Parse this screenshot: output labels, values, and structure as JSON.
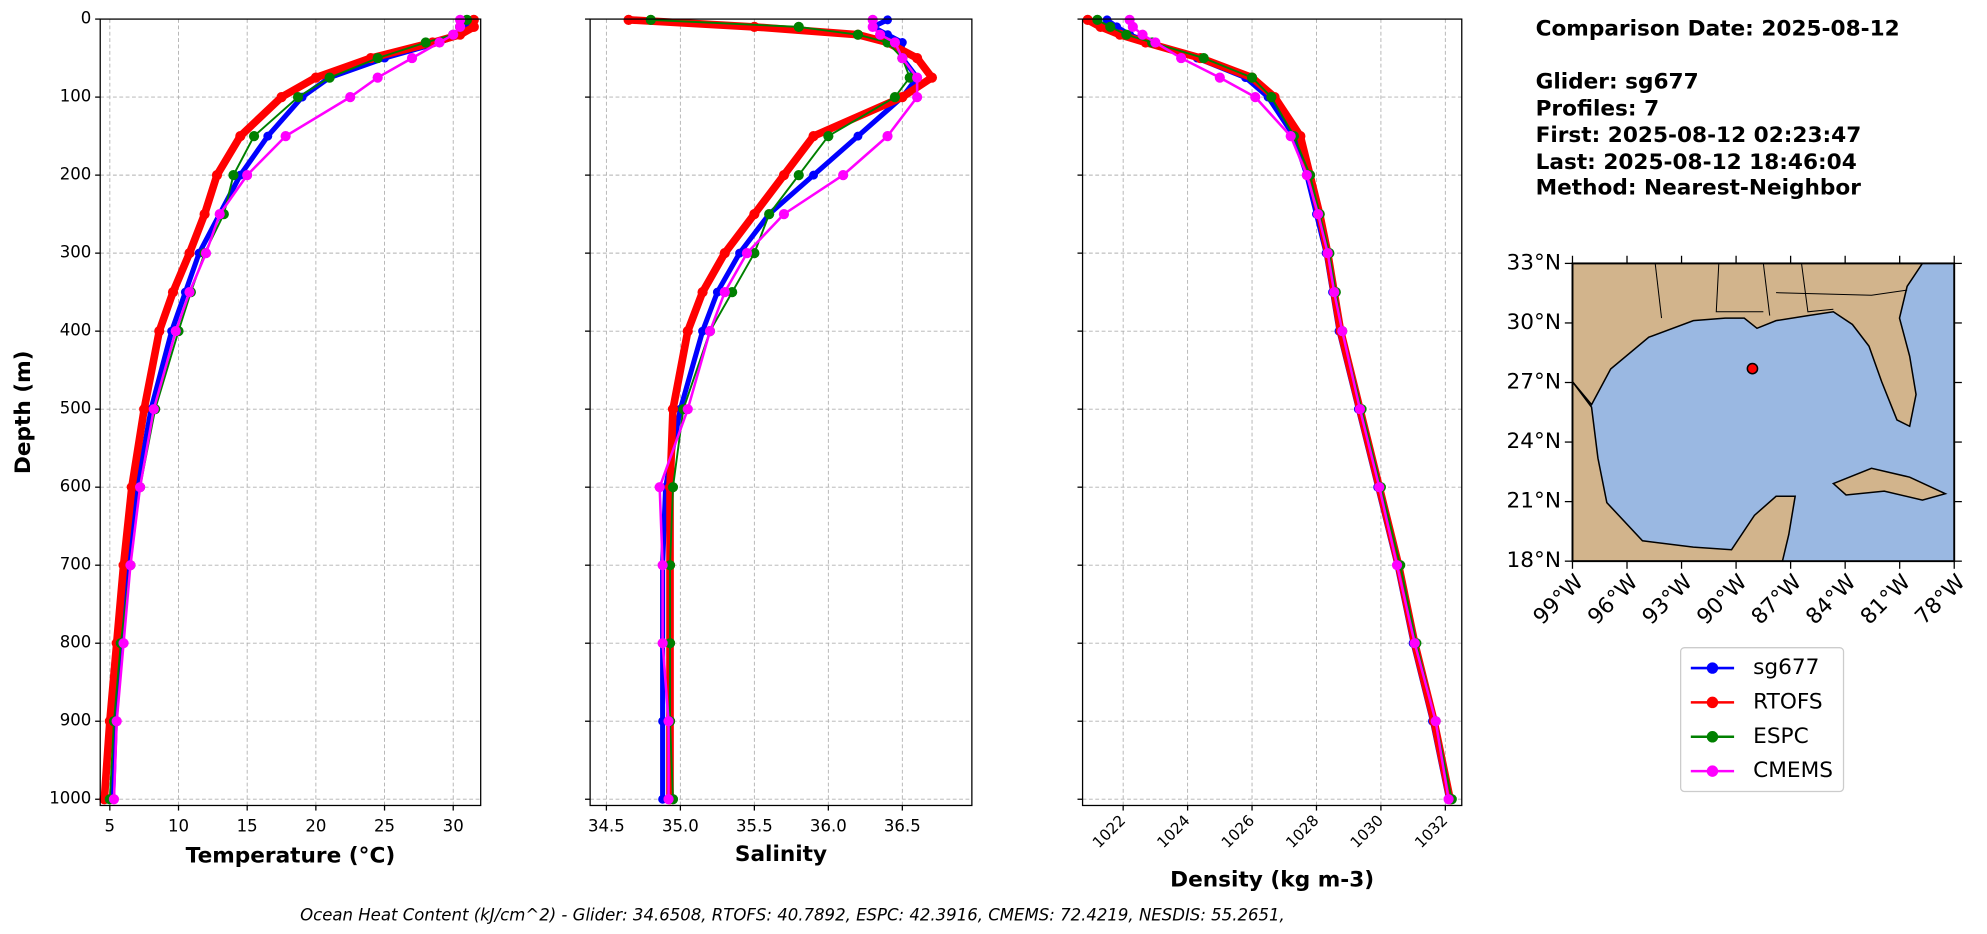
{
  "chart_data": [
    {
      "type": "line",
      "xlabel": "Temperature (°C)",
      "ylabel": "Depth (m)",
      "xlim": [
        4.3,
        32.0
      ],
      "xticks": [
        5,
        10,
        15,
        20,
        25,
        30
      ],
      "ylim": [
        1008,
        0
      ],
      "yticks": [
        0,
        100,
        200,
        300,
        400,
        500,
        600,
        700,
        800,
        900,
        1000
      ],
      "ytick_labels": true,
      "grid": true,
      "y": [
        1,
        10,
        20,
        30,
        50,
        75,
        100,
        150,
        200,
        250,
        300,
        350,
        400,
        500,
        600,
        700,
        800,
        900,
        1000
      ],
      "series": [
        {
          "name": "sg677",
          "color": "#0000ff",
          "values": [
            31,
            31,
            30.5,
            29,
            25,
            21,
            19,
            16.5,
            14.5,
            13,
            11.5,
            10.5,
            9.5,
            8,
            7,
            6.3,
            5.8,
            5.4,
            5.2
          ]
        },
        {
          "name": "RTOFS",
          "color": "#ff0000",
          "values": [
            31.5,
            31.5,
            30.5,
            28.5,
            24,
            20,
            17.5,
            14.5,
            12.8,
            11.9,
            10.8,
            9.6,
            8.6,
            7.5,
            6.6,
            6,
            5.5,
            5,
            4.6
          ]
        },
        {
          "name": "ESPC",
          "color": "#008000",
          "values": [
            31,
            30.5,
            30,
            28,
            24.5,
            21,
            18.7,
            15.5,
            14,
            13.3,
            11.9,
            10.9,
            10,
            8.3,
            7.2,
            6.5,
            5.8,
            5.3,
            5
          ]
        },
        {
          "name": "CMEMS",
          "color": "#ff00ff",
          "values": [
            30.5,
            30.5,
            30,
            29,
            27,
            24.5,
            22.5,
            17.8,
            15,
            13,
            12,
            10.8,
            9.8,
            8.2,
            7.2,
            6.5,
            6,
            5.5,
            5.3
          ]
        }
      ]
    },
    {
      "type": "line",
      "xlabel": "Salinity",
      "xlim": [
        34.39,
        36.97
      ],
      "xticks": [
        34.5,
        {
          "value": 35,
          "label": "35.0"
        },
        35.5,
        {
          "value": 36,
          "label": "36.0"
        },
        36.5
      ],
      "ylim": [
        1008,
        0
      ],
      "yticks": [
        0,
        100,
        200,
        300,
        400,
        500,
        600,
        700,
        800,
        900,
        1000
      ],
      "ytick_labels": false,
      "grid": true,
      "y": [
        1,
        10,
        20,
        30,
        50,
        75,
        100,
        150,
        200,
        250,
        300,
        350,
        400,
        500,
        600,
        700,
        800,
        900,
        1000
      ],
      "series": [
        {
          "name": "sg677",
          "color": "#0000ff",
          "values": [
            36.4,
            36.3,
            36.4,
            36.5,
            36.5,
            36.6,
            36.5,
            36.2,
            35.9,
            35.6,
            35.4,
            35.25,
            35.15,
            35,
            34.9,
            34.88,
            34.88,
            34.88,
            34.88
          ]
        },
        {
          "name": "RTOFS",
          "color": "#ff0000",
          "values": [
            34.65,
            35.5,
            36.2,
            36.4,
            36.6,
            36.7,
            36.5,
            35.9,
            35.7,
            35.5,
            35.3,
            35.15,
            35.05,
            34.95,
            34.93,
            34.93,
            34.93,
            34.93,
            34.93
          ]
        },
        {
          "name": "ESPC",
          "color": "#008000",
          "values": [
            34.8,
            35.8,
            36.2,
            36.4,
            36.5,
            36.55,
            36.45,
            36,
            35.8,
            35.6,
            35.5,
            35.35,
            35.2,
            35.02,
            34.95,
            34.93,
            34.93,
            34.93,
            34.95
          ]
        },
        {
          "name": "CMEMS",
          "color": "#ff00ff",
          "values": [
            36.3,
            36.3,
            36.35,
            36.45,
            36.5,
            36.6,
            36.6,
            36.4,
            36.1,
            35.7,
            35.45,
            35.3,
            35.2,
            35.05,
            34.86,
            34.88,
            34.88,
            34.92,
            34.92
          ]
        }
      ]
    },
    {
      "type": "line",
      "xlabel": "Density (kg m-3)",
      "xlim": [
        1020.74,
        1032.51
      ],
      "xticks": [
        1022,
        1024,
        1026,
        1028,
        1030,
        1032
      ],
      "ylim": [
        1008,
        0
      ],
      "yticks": [
        0,
        100,
        200,
        300,
        400,
        500,
        600,
        700,
        800,
        900,
        1000
      ],
      "ytick_labels": false,
      "grid": true,
      "y": [
        1,
        10,
        20,
        30,
        50,
        75,
        100,
        150,
        200,
        250,
        300,
        350,
        400,
        500,
        600,
        700,
        800,
        900,
        1000
      ],
      "series": [
        {
          "name": "sg677",
          "color": "#0000ff",
          "values": [
            1021.5,
            1021.8,
            1022.2,
            1022.8,
            1024.3,
            1025.8,
            1026.5,
            1027.3,
            1027.7,
            1028,
            1028.3,
            1028.5,
            1028.7,
            1029.3,
            1029.9,
            1030.5,
            1031,
            1031.6,
            1032.1
          ]
        },
        {
          "name": "RTOFS",
          "color": "#ff0000",
          "values": [
            1020.9,
            1021.3,
            1021.9,
            1022.7,
            1024.4,
            1026,
            1026.7,
            1027.5,
            1027.8,
            1028.1,
            1028.35,
            1028.55,
            1028.75,
            1029.35,
            1029.95,
            1030.55,
            1031.05,
            1031.65,
            1032.15
          ]
        },
        {
          "name": "ESPC",
          "color": "#008000",
          "values": [
            1021.2,
            1021.6,
            1022.1,
            1022.9,
            1024.5,
            1026,
            1026.6,
            1027.3,
            1027.8,
            1028.1,
            1028.4,
            1028.6,
            1028.8,
            1029.4,
            1030,
            1030.6,
            1031.1,
            1031.7,
            1032.2
          ]
        },
        {
          "name": "CMEMS",
          "color": "#ff00ff",
          "values": [
            1022.2,
            1022.3,
            1022.6,
            1023,
            1023.8,
            1025,
            1026.1,
            1027.2,
            1027.7,
            1028.05,
            1028.35,
            1028.55,
            1028.8,
            1029.35,
            1029.95,
            1030.5,
            1031.05,
            1031.7,
            1032.1
          ]
        }
      ]
    },
    {
      "type": "map",
      "ocean_color": "#9ab8e2",
      "land_color": "#d2b48c",
      "xlim": [
        -99,
        -78
      ],
      "xticks": [
        {
          "value": -99,
          "label": "99°W"
        },
        {
          "value": -96,
          "label": "96°W"
        },
        {
          "value": -93,
          "label": "93°W"
        },
        {
          "value": -90,
          "label": "90°W"
        },
        {
          "value": -87,
          "label": "87°W"
        },
        {
          "value": -84,
          "label": "84°W"
        },
        {
          "value": -81,
          "label": "81°W"
        },
        {
          "value": -78,
          "label": "78°W"
        }
      ],
      "ylim": [
        18,
        33
      ],
      "yticks": [
        {
          "value": 18,
          "label": "18°N"
        },
        {
          "value": 21,
          "label": "21°N"
        },
        {
          "value": 24,
          "label": "24°N"
        },
        {
          "value": 27,
          "label": "27°N"
        },
        {
          "value": 30,
          "label": "30°N"
        },
        {
          "value": 33,
          "label": "33°N"
        }
      ],
      "point": {
        "lon": -89.1,
        "lat": 27.7,
        "color": "#ff0000"
      }
    }
  ],
  "info": {
    "comparison": "Comparison Date: 2025-08-12",
    "lines": [
      "Glider: sg677",
      "Profiles: 7",
      "First: 2025-08-12 02:23:47",
      "Last: 2025-08-12 18:46:04",
      "Method: Nearest-Neighbor"
    ]
  },
  "footer": "Ocean Heat Content (kJ/cm^2) - Glider: 34.6508,  RTOFS: 40.7892,  ESPC: 42.3916,  CMEMS: 72.4219,  NESDIS: 55.2651,"
}
